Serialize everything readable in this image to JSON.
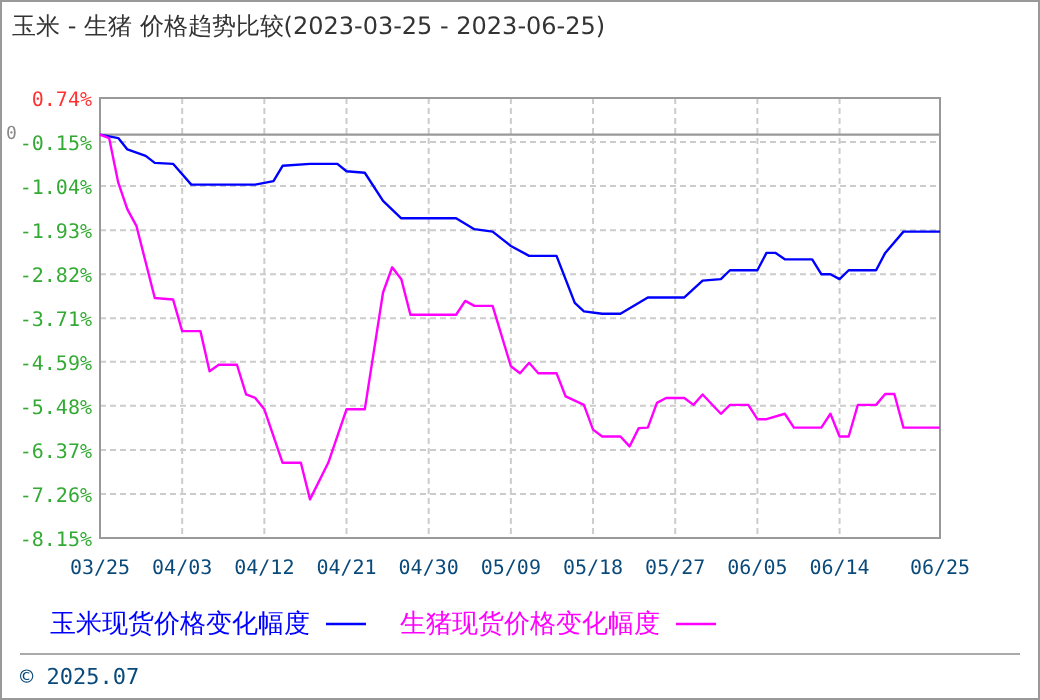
{
  "chart_data": {
    "type": "line",
    "title": "玉米 - 生猪  价格趋势比较(2023-03-25 - 2023-06-25)",
    "xlim": [
      "2023-03-25",
      "2023-06-25"
    ],
    "xticks": [
      {
        "value": "2023-03-25",
        "label": "03/25"
      },
      {
        "value": "2023-04-03",
        "label": "04/03"
      },
      {
        "value": "2023-04-12",
        "label": "04/12"
      },
      {
        "value": "2023-04-21",
        "label": "04/21"
      },
      {
        "value": "2023-04-30",
        "label": "04/30"
      },
      {
        "value": "2023-05-09",
        "label": "05/09"
      },
      {
        "value": "2023-05-18",
        "label": "05/18"
      },
      {
        "value": "2023-05-27",
        "label": "05/27"
      },
      {
        "value": "2023-06-05",
        "label": "06/05"
      },
      {
        "value": "2023-06-14",
        "label": "06/14"
      },
      {
        "value": "2023-06-25",
        "label": "06/25"
      }
    ],
    "ylim": [
      -8.15,
      0.74
    ],
    "yticks": [
      {
        "value": 0.74,
        "label": "0.74%"
      },
      {
        "value": -0.15,
        "label": "-0.15%"
      },
      {
        "value": -1.04,
        "label": "-1.04%"
      },
      {
        "value": -1.93,
        "label": "-1.93%"
      },
      {
        "value": -2.82,
        "label": "-2.82%"
      },
      {
        "value": -3.71,
        "label": "-3.71%"
      },
      {
        "value": -4.59,
        "label": "-4.59%"
      },
      {
        "value": -5.48,
        "label": "-5.48%"
      },
      {
        "value": -6.37,
        "label": "-6.37%"
      },
      {
        "value": -7.26,
        "label": "-7.26%"
      },
      {
        "value": -8.15,
        "label": "-8.15%"
      }
    ],
    "ref_lines": [
      {
        "axis": "y",
        "value": 0,
        "label": "0",
        "color": "#999999"
      }
    ],
    "grid": true,
    "legend": "bottom",
    "line_style": "solid",
    "marker": "none",
    "annotations": [
      "© 2025.07"
    ],
    "series": [
      {
        "name": "玉米现货价格变化幅度",
        "color": "#0000ff",
        "x": [
          "2023-03-25",
          "2023-03-27",
          "2023-03-28",
          "2023-03-30",
          "2023-03-31",
          "2023-04-02",
          "2023-04-04",
          "2023-04-11",
          "2023-04-13",
          "2023-04-14",
          "2023-04-17",
          "2023-04-20",
          "2023-04-21",
          "2023-04-23",
          "2023-04-25",
          "2023-04-27",
          "2023-05-03",
          "2023-05-05",
          "2023-05-07",
          "2023-05-09",
          "2023-05-11",
          "2023-05-14",
          "2023-05-16",
          "2023-05-17",
          "2023-05-19",
          "2023-05-21",
          "2023-05-24",
          "2023-05-28",
          "2023-05-30",
          "2023-06-01",
          "2023-06-02",
          "2023-06-05",
          "2023-06-06",
          "2023-06-07",
          "2023-06-08",
          "2023-06-11",
          "2023-06-12",
          "2023-06-13",
          "2023-06-14",
          "2023-06-15",
          "2023-06-18",
          "2023-06-19",
          "2023-06-21",
          "2023-06-25"
        ],
        "values": [
          0,
          -0.07,
          -0.3,
          -0.43,
          -0.57,
          -0.59,
          -1.01,
          -1.01,
          -0.94,
          -0.63,
          -0.59,
          -0.59,
          -0.74,
          -0.77,
          -1.34,
          -1.69,
          -1.69,
          -1.91,
          -1.96,
          -2.25,
          -2.45,
          -2.45,
          -3.4,
          -3.57,
          -3.62,
          -3.62,
          -3.29,
          -3.29,
          -2.95,
          -2.92,
          -2.74,
          -2.74,
          -2.39,
          -2.39,
          -2.52,
          -2.52,
          -2.82,
          -2.82,
          -2.92,
          -2.74,
          -2.74,
          -2.39,
          -1.96,
          -1.96
        ]
      },
      {
        "name": "生猪现货价格变化幅度",
        "color": "#ff00ff",
        "x": [
          "2023-03-25",
          "2023-03-26",
          "2023-03-27",
          "2023-03-28",
          "2023-03-29",
          "2023-03-31",
          "2023-04-02",
          "2023-04-03",
          "2023-04-05",
          "2023-04-06",
          "2023-04-07",
          "2023-04-09",
          "2023-04-10",
          "2023-04-11",
          "2023-04-12",
          "2023-04-14",
          "2023-04-16",
          "2023-04-17",
          "2023-04-19",
          "2023-04-21",
          "2023-04-23",
          "2023-04-25",
          "2023-04-26",
          "2023-04-27",
          "2023-04-28",
          "2023-05-03",
          "2023-05-04",
          "2023-05-05",
          "2023-05-07",
          "2023-05-09",
          "2023-05-10",
          "2023-05-11",
          "2023-05-12",
          "2023-05-14",
          "2023-05-15",
          "2023-05-17",
          "2023-05-18",
          "2023-05-19",
          "2023-05-21",
          "2023-05-22",
          "2023-05-23",
          "2023-05-24",
          "2023-05-25",
          "2023-05-26",
          "2023-05-28",
          "2023-05-29",
          "2023-05-30",
          "2023-06-01",
          "2023-06-02",
          "2023-06-04",
          "2023-06-05",
          "2023-06-06",
          "2023-06-08",
          "2023-06-09",
          "2023-06-12",
          "2023-06-13",
          "2023-06-14",
          "2023-06-15",
          "2023-06-16",
          "2023-06-18",
          "2023-06-19",
          "2023-06-20",
          "2023-06-21",
          "2023-06-25"
        ],
        "values": [
          0,
          -0.07,
          -0.97,
          -1.51,
          -1.85,
          -3.3,
          -3.33,
          -3.97,
          -3.97,
          -4.78,
          -4.65,
          -4.65,
          -5.25,
          -5.32,
          -5.55,
          -6.63,
          -6.63,
          -7.37,
          -6.63,
          -5.55,
          -5.55,
          -3.19,
          -2.68,
          -2.92,
          -3.64,
          -3.64,
          -3.36,
          -3.46,
          -3.46,
          -4.68,
          -4.82,
          -4.61,
          -4.82,
          -4.82,
          -5.29,
          -5.46,
          -5.96,
          -6.1,
          -6.1,
          -6.3,
          -5.93,
          -5.92,
          -5.42,
          -5.32,
          -5.32,
          -5.46,
          -5.25,
          -5.64,
          -5.46,
          -5.46,
          -5.75,
          -5.75,
          -5.64,
          -5.92,
          -5.92,
          -5.64,
          -6.1,
          -6.1,
          -5.46,
          -5.46,
          -5.24,
          -5.24,
          -5.92,
          -5.92
        ]
      }
    ]
  }
}
